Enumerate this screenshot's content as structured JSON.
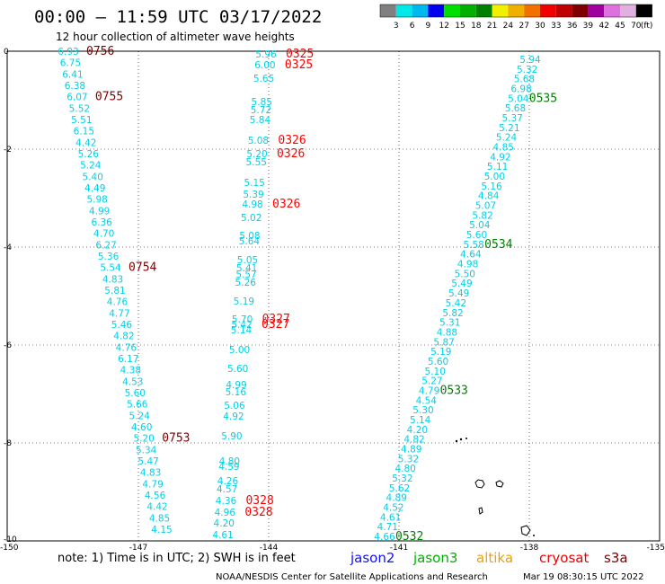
{
  "header": {
    "title": "00:00 – 11:59 UTC 03/17/2022",
    "subtitle": "12 hour collection of altimeter wave heights"
  },
  "color_scale": {
    "labels": [
      "3",
      "6",
      "9",
      "12",
      "15",
      "18",
      "21",
      "24",
      "27",
      "30",
      "33",
      "36",
      "39",
      "42",
      "45",
      "70"
    ],
    "unit": "(ft)",
    "colors": [
      "#808080",
      "#00e8e8",
      "#00b8f0",
      "#0000f0",
      "#00e000",
      "#00b000",
      "#008000",
      "#f0f000",
      "#f0b000",
      "#f07000",
      "#f00000",
      "#c00000",
      "#800000",
      "#a000a0",
      "#e070e0",
      "#e0b0e0",
      "#000000"
    ]
  },
  "axes": {
    "x_labels": [
      "-150",
      "-147",
      "-144",
      "-141",
      "-138",
      "-135"
    ],
    "y_labels": [
      "0",
      "-2",
      "-4",
      "-6",
      "-8",
      "-10"
    ]
  },
  "tracks": [
    {
      "name": "track-a",
      "values": [
        "6.93",
        "6.75",
        "6.41",
        "6.38",
        "6.07",
        "5.52",
        "5.51",
        "6.15",
        "4.42",
        "5.26",
        "5.24",
        "5.40",
        "4.49",
        "5.98",
        "4.99",
        "6.36",
        "4.70",
        "6.27",
        "5.36",
        "5.54",
        "4.83",
        "5.81",
        "4.76",
        "4.77",
        "5.46",
        "4.82",
        "4.76",
        "6.17",
        "4.38",
        "4.53",
        "5.60",
        "5.66",
        "5.24",
        "4.60",
        "5.20",
        "5.34",
        "5.47",
        "4.83",
        "4.79",
        "4.56",
        "4.42",
        "4.85",
        "4.15"
      ],
      "times": [
        {
          "label": "0756",
          "value_index": 0
        },
        {
          "label": "0755",
          "value_index": 4
        },
        {
          "label": "0754",
          "value_index": 19
        },
        {
          "label": "0753",
          "value_index": 34
        }
      ]
    },
    {
      "name": "track-b",
      "values": [
        "5.96",
        "6.00",
        "5.65",
        "5.85",
        "5.72",
        "5.84",
        "5.08",
        "5.20",
        "5.55",
        "5.15",
        "5.39",
        "4.98",
        "5.02",
        "5.08",
        "5.64",
        "5.05",
        "5.41",
        "5.57",
        "5.26",
        "5.19",
        "5.70",
        "5.42",
        "5.14",
        "5.00",
        "5.60",
        "4.99",
        "5.16",
        "5.06",
        "4.92",
        "5.90",
        "4.80",
        "4.59",
        "4.26",
        "4.57",
        "4.36",
        "4.96",
        "4.20",
        "4.61"
      ],
      "times": [
        {
          "label": "0325",
          "value_index": 0
        },
        {
          "label": "0325",
          "value_index": 1
        },
        {
          "label": "0326",
          "value_index": 6
        },
        {
          "label": "0326",
          "value_index": 7
        },
        {
          "label": "0326",
          "value_index": 11
        },
        {
          "label": "0327",
          "value_index": 20
        },
        {
          "label": "0327",
          "value_index": 21
        },
        {
          "label": "0328",
          "value_index": 34
        },
        {
          "label": "0328",
          "value_index": 35
        }
      ]
    },
    {
      "name": "track-c",
      "values": [
        "5.94",
        "5.32",
        "5.68",
        "6.98",
        "5.04",
        "5.68",
        "5.37",
        "5.21",
        "5.24",
        "4.85",
        "4.92",
        "5.11",
        "5.00",
        "5.16",
        "4.84",
        "5.07",
        "5.82",
        "5.04",
        "5.60",
        "5.58",
        "4.64",
        "4.98",
        "5.50",
        "5.49",
        "5.49",
        "5.42",
        "5.82",
        "5.31",
        "4.88",
        "5.87",
        "5.19",
        "5.60",
        "5.10",
        "5.27",
        "4.79",
        "4.54",
        "5.30",
        "5.14",
        "4.20",
        "4.82",
        "4.89",
        "5.32",
        "4.80",
        "5.32",
        "5.62",
        "4.89",
        "4.52",
        "4.61",
        "4.71",
        "4.66"
      ],
      "times": [
        {
          "label": "0535",
          "value_index": 4
        },
        {
          "label": "0534",
          "value_index": 19
        },
        {
          "label": "0533",
          "value_index": 34
        },
        {
          "label": "0532",
          "value_index": 49
        }
      ]
    }
  ],
  "footer": {
    "note": "note:  1) Time is in UTC;  2) SWH is in feet",
    "satellites": [
      {
        "label": "jason2",
        "color": "#1010ff"
      },
      {
        "label": "jason3",
        "color": "#00b000"
      },
      {
        "label": "altika",
        "color": "#f0a000"
      },
      {
        "label": "cryosat",
        "color": "#f00000"
      },
      {
        "label": "s3a",
        "color": "#800000"
      }
    ],
    "credit": "NOAA/NESDIS Center for Satellite Applications and Research",
    "timestamp": "Mar 19 08:30:15 UTC 2022"
  }
}
